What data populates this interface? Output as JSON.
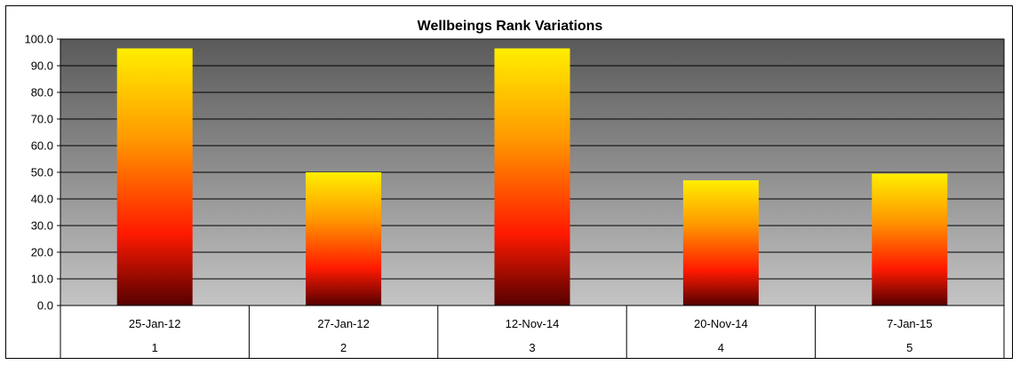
{
  "chart_data": {
    "type": "bar",
    "title": "Wellbeings Rank Variations",
    "xlabel": "",
    "ylabel": "",
    "ylim": [
      0,
      100
    ],
    "yticks": [
      "0.0",
      "10.0",
      "20.0",
      "30.0",
      "40.0",
      "50.0",
      "60.0",
      "70.0",
      "80.0",
      "90.0",
      "100.0"
    ],
    "grid": true,
    "categories": [
      "25-Jan-12",
      "27-Jan-12",
      "12-Nov-14",
      "20-Nov-14",
      "7-Jan-15"
    ],
    "category_sublabels": [
      "1",
      "2",
      "3",
      "4",
      "5"
    ],
    "values": [
      96.5,
      50.0,
      96.5,
      47.0,
      49.5
    ],
    "colors": {
      "bar_top": "#ffee00",
      "bar_mid": "#ff9900",
      "bar_low": "#ff1a00",
      "bar_bottom": "#550000",
      "plot_top": "#5a5a5a",
      "plot_bottom": "#c4c4c4"
    }
  }
}
